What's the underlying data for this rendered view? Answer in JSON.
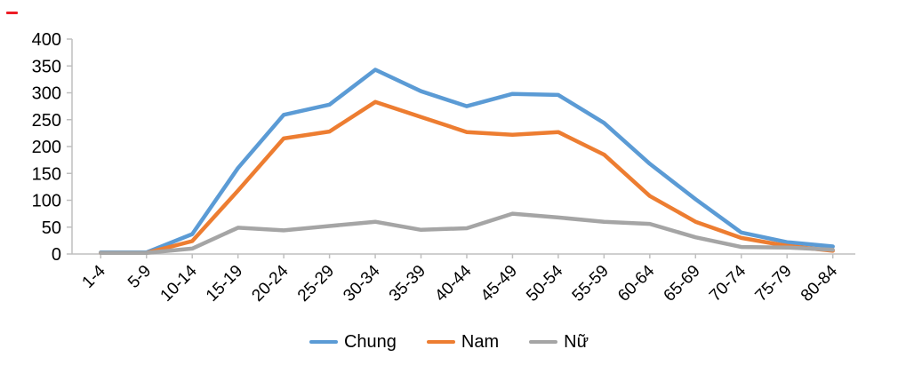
{
  "chart_data": {
    "type": "line",
    "title": "",
    "xlabel": "",
    "ylabel": "",
    "categories": [
      "1-4",
      "5-9",
      "10-14",
      "15-19",
      "20-24",
      "25-29",
      "30-34",
      "35-39",
      "40-44",
      "45-49",
      "50-54",
      "55-59",
      "60-64",
      "65-69",
      "70-74",
      "75-79",
      "80-84"
    ],
    "series": [
      {
        "name": "Chung",
        "color": "#5B9BD5",
        "values": [
          3,
          3,
          37,
          160,
          259,
          278,
          343,
          303,
          275,
          298,
          296,
          244,
          168,
          102,
          40,
          22,
          14
        ]
      },
      {
        "name": "Nam",
        "color": "#ED7D31",
        "values": [
          2,
          2,
          24,
          118,
          215,
          228,
          283,
          255,
          227,
          222,
          227,
          185,
          108,
          60,
          30,
          15,
          6
        ]
      },
      {
        "name": "Nữ",
        "color": "#A5A5A5",
        "values": [
          2,
          2,
          10,
          49,
          44,
          52,
          60,
          45,
          48,
          75,
          68,
          60,
          56,
          31,
          13,
          12,
          8
        ]
      }
    ],
    "ylim": [
      0,
      400
    ],
    "ytick_step": 50,
    "grid": false,
    "legend_position": "bottom",
    "axis_color": "#BFBFBF",
    "text_color": "#000000"
  },
  "decorations": {
    "red_dash_color": "#ED1C24"
  }
}
